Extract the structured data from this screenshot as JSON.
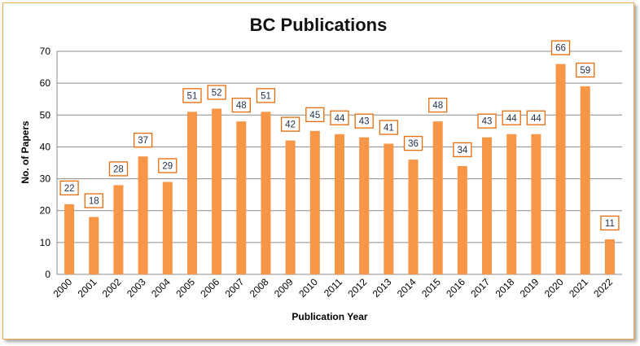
{
  "chart_data": {
    "type": "bar",
    "title": "BC Publications",
    "xlabel": "Publication Year",
    "ylabel": "No. of Papers",
    "ylim": [
      0,
      70
    ],
    "yticks": [
      0,
      10,
      20,
      30,
      40,
      50,
      60,
      70
    ],
    "grid": true,
    "legend": "none",
    "categories": [
      "2000",
      "2001",
      "2002",
      "2003",
      "2004",
      "2005",
      "2006",
      "2007",
      "2008",
      "2009",
      "2010",
      "2011",
      "2012",
      "2013",
      "2014",
      "2015",
      "2016",
      "2017",
      "2018",
      "2019",
      "2020",
      "2021",
      "2022"
    ],
    "values": [
      22,
      18,
      28,
      37,
      29,
      51,
      52,
      48,
      51,
      42,
      45,
      44,
      43,
      41,
      36,
      48,
      34,
      43,
      44,
      44,
      66,
      59,
      11
    ],
    "colors": {
      "bar": "#f79646",
      "label_border": "#e46c0a",
      "frame": "#f0a64a"
    }
  }
}
